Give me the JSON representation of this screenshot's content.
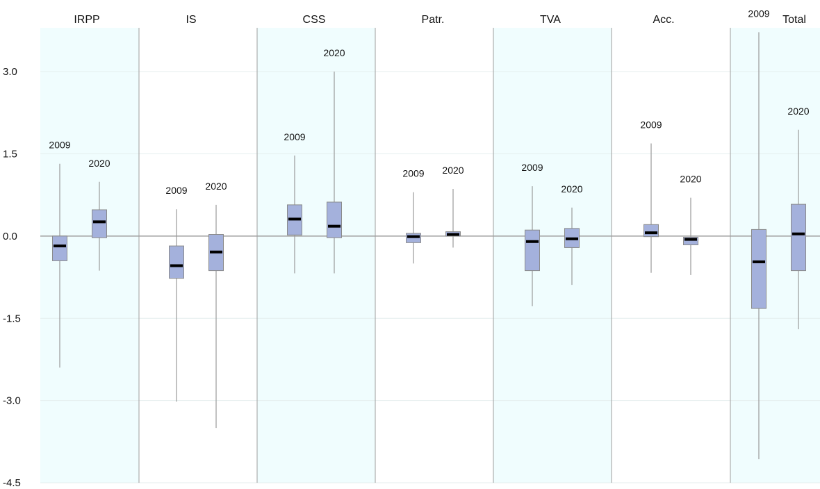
{
  "chart_data": {
    "type": "boxplot",
    "title": "",
    "xlabel": "",
    "ylabel": "",
    "ylim": [
      -4.5,
      3.8
    ],
    "yticks": [
      "3.0",
      "1.5",
      "0.0",
      "-1.5",
      "-3.0",
      "-4.5"
    ],
    "categories": [
      "IRPP",
      "IS",
      "CSS",
      "Patr.",
      "TVA",
      "Acc.",
      "Total"
    ],
    "series_labels": [
      "2009",
      "2020"
    ],
    "groups": [
      {
        "category": "IRPP",
        "boxes": [
          {
            "label": "2009",
            "min": -2.4,
            "q1": -0.45,
            "median": -0.18,
            "q3": 0.0,
            "max": 1.32
          },
          {
            "label": "2020",
            "min": -0.63,
            "q1": -0.03,
            "median": 0.26,
            "q3": 0.48,
            "max": 0.99
          }
        ]
      },
      {
        "category": "IS",
        "boxes": [
          {
            "label": "2009",
            "min": -3.02,
            "q1": -0.77,
            "median": -0.54,
            "q3": -0.18,
            "max": 0.49
          },
          {
            "label": "2020",
            "min": -3.5,
            "q1": -0.63,
            "median": -0.29,
            "q3": 0.03,
            "max": 0.57
          }
        ]
      },
      {
        "category": "CSS",
        "boxes": [
          {
            "label": "2009",
            "min": -0.68,
            "q1": 0.02,
            "median": 0.31,
            "q3": 0.57,
            "max": 1.47
          },
          {
            "label": "2020",
            "min": -0.68,
            "q1": -0.03,
            "median": 0.18,
            "q3": 0.62,
            "max": 3.0
          }
        ]
      },
      {
        "category": "Patr.",
        "boxes": [
          {
            "label": "2009",
            "min": -0.5,
            "q1": -0.12,
            "median": -0.01,
            "q3": 0.05,
            "max": 0.8
          },
          {
            "label": "2020",
            "min": -0.21,
            "q1": 0.0,
            "median": 0.03,
            "q3": 0.08,
            "max": 0.86
          }
        ]
      },
      {
        "category": "TVA",
        "boxes": [
          {
            "label": "2009",
            "min": -1.28,
            "q1": -0.63,
            "median": -0.1,
            "q3": 0.11,
            "max": 0.91
          },
          {
            "label": "2020",
            "min": -0.89,
            "q1": -0.21,
            "median": -0.05,
            "q3": 0.14,
            "max": 0.52
          }
        ]
      },
      {
        "category": "Acc.",
        "boxes": [
          {
            "label": "2009",
            "min": -0.67,
            "q1": -0.01,
            "median": 0.06,
            "q3": 0.21,
            "max": 1.69
          },
          {
            "label": "2020",
            "min": -0.71,
            "q1": -0.16,
            "median": -0.06,
            "q3": -0.02,
            "max": 0.7
          }
        ]
      },
      {
        "category": "Total",
        "boxes": [
          {
            "label": "2009",
            "min": -4.07,
            "q1": -1.32,
            "median": -0.47,
            "q3": 0.12,
            "max": 3.72
          },
          {
            "label": "2020",
            "min": -1.7,
            "q1": -0.63,
            "median": 0.04,
            "q3": 0.58,
            "max": 1.94
          }
        ]
      }
    ],
    "colors": {
      "background_shade": "#f0fdfe",
      "box_fill": "#a4b1dc",
      "box_stroke": "#8a8a8a",
      "whisker": "#9a9a9a",
      "median": "#000000",
      "zero_line": "#a0a0a0",
      "grid": "#e4eeee",
      "divider": "#9e9e9e"
    },
    "grid": true
  }
}
